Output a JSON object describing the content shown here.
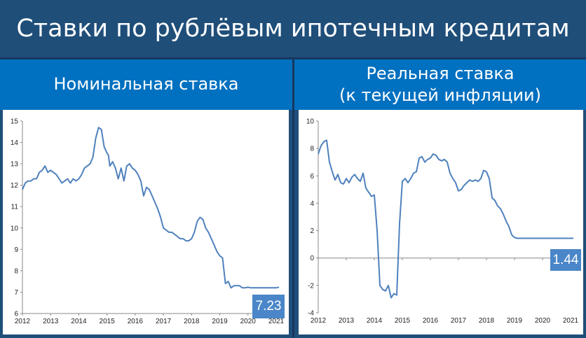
{
  "page": {
    "title": "Ставки по рублёвым ипотечным кредитам",
    "left_header": "Номинальная ставка",
    "right_header_line1": "Реальная ставка",
    "right_header_line2": "(к текущей инфляции)",
    "left_badge": "7.23",
    "right_badge": "1.44"
  },
  "colors": {
    "line": "#4f81bd",
    "header": "#1f4e79",
    "panel": "#0070c0",
    "badge": "#4a86c8"
  },
  "chart_data": [
    {
      "type": "line",
      "title": "Номинальная ставка",
      "xlim": [
        2012,
        2021.2
      ],
      "ylim": [
        6,
        15
      ],
      "yticks": [
        6,
        7,
        8,
        9,
        10,
        11,
        12,
        13,
        14,
        15
      ],
      "xticks": [
        2012,
        2013,
        2014,
        2015,
        2016,
        2017,
        2018,
        2019,
        2020,
        2021
      ],
      "grid": false,
      "series": [
        {
          "x": [
            2012,
            2012.1,
            2012.2,
            2012.3,
            2012.4,
            2012.5,
            2012.6,
            2012.7,
            2012.8,
            2012.9,
            2013,
            2013.1,
            2013.2,
            2013.3,
            2013.4,
            2013.5,
            2013.6,
            2013.7,
            2013.8,
            2013.9,
            2014,
            2014.1,
            2014.2,
            2014.3,
            2014.4,
            2014.5,
            2014.6,
            2014.7,
            2014.8,
            2014.9,
            2015,
            2015.05,
            2015.1,
            2015.2,
            2015.3,
            2015.4,
            2015.5,
            2015.6,
            2015.7,
            2015.8,
            2015.9,
            2016,
            2016.1,
            2016.2,
            2016.3,
            2016.4,
            2016.5,
            2016.6,
            2016.7,
            2016.8,
            2016.9,
            2017,
            2017.1,
            2017.2,
            2017.3,
            2017.4,
            2017.5,
            2017.6,
            2017.7,
            2017.8,
            2017.9,
            2018,
            2018.1,
            2018.2,
            2018.3,
            2018.4,
            2018.5,
            2018.6,
            2018.7,
            2018.8,
            2018.9,
            2019,
            2019.1,
            2019.2,
            2019.3,
            2019.4,
            2019.5,
            2019.6,
            2019.7,
            2019.8,
            2019.9,
            2020,
            2020.1,
            2020.2,
            2020.3,
            2020.4,
            2020.5,
            2020.6,
            2020.7,
            2020.8,
            2020.9,
            2021,
            2021.1
          ],
          "y": [
            11.8,
            12.1,
            12.2,
            12.2,
            12.3,
            12.3,
            12.6,
            12.7,
            12.9,
            12.6,
            12.7,
            12.6,
            12.5,
            12.3,
            12.1,
            12.2,
            12.3,
            12.1,
            12.3,
            12.2,
            12.3,
            12.5,
            12.8,
            12.9,
            13.0,
            13.3,
            14.2,
            14.7,
            14.6,
            13.8,
            13.5,
            13.4,
            12.9,
            13.1,
            12.8,
            12.3,
            12.8,
            12.2,
            12.9,
            13.0,
            12.8,
            12.7,
            12.5,
            12.2,
            11.5,
            11.9,
            11.8,
            11.5,
            11.2,
            10.9,
            10.5,
            10.0,
            9.9,
            9.8,
            9.8,
            9.7,
            9.6,
            9.5,
            9.5,
            9.4,
            9.4,
            9.5,
            9.8,
            10.3,
            10.5,
            10.4,
            10.0,
            9.8,
            9.5,
            9.2,
            8.9,
            8.7,
            8.6,
            7.4,
            7.5,
            7.2,
            7.3,
            7.3,
            7.3,
            7.2,
            7.2,
            7.23,
            7.2,
            7.2,
            7.2,
            7.2,
            7.2,
            7.2,
            7.2,
            7.2,
            7.2,
            7.2,
            7.23
          ]
        }
      ]
    },
    {
      "type": "line",
      "title": "Реальная ставка (к текущей инфляции)",
      "xlim": [
        2012,
        2021.2
      ],
      "ylim": [
        -4,
        10
      ],
      "yticks": [
        -4,
        -2,
        0,
        2,
        4,
        6,
        8,
        10
      ],
      "xticks": [
        2012,
        2013,
        2014,
        2015,
        2016,
        2017,
        2018,
        2019,
        2020,
        2021
      ],
      "grid": false,
      "series": [
        {
          "x": [
            2012,
            2012.1,
            2012.2,
            2012.3,
            2012.4,
            2012.5,
            2012.6,
            2012.7,
            2012.8,
            2012.9,
            2013,
            2013.1,
            2013.2,
            2013.3,
            2013.4,
            2013.5,
            2013.6,
            2013.7,
            2013.8,
            2013.9,
            2014,
            2014.1,
            2014.2,
            2014.3,
            2014.4,
            2014.5,
            2014.6,
            2014.7,
            2014.8,
            2014.9,
            2015,
            2015.1,
            2015.2,
            2015.3,
            2015.4,
            2015.5,
            2015.6,
            2015.7,
            2015.8,
            2015.9,
            2016,
            2016.1,
            2016.2,
            2016.3,
            2016.4,
            2016.5,
            2016.6,
            2016.7,
            2016.8,
            2016.9,
            2017,
            2017.1,
            2017.2,
            2017.3,
            2017.4,
            2017.5,
            2017.6,
            2017.7,
            2017.8,
            2017.9,
            2018,
            2018.1,
            2018.2,
            2018.3,
            2018.4,
            2018.5,
            2018.6,
            2018.7,
            2018.8,
            2018.9,
            2019,
            2019.1,
            2019.2,
            2019.3,
            2019.4,
            2019.5,
            2019.6,
            2019.7,
            2019.8,
            2019.9,
            2020,
            2020.1,
            2020.2,
            2020.3,
            2020.4,
            2020.5,
            2020.6,
            2020.7,
            2020.8,
            2020.9,
            2021,
            2021.1
          ],
          "y": [
            7.6,
            8.2,
            8.5,
            8.6,
            7.0,
            6.3,
            5.7,
            6.1,
            5.5,
            5.4,
            5.8,
            5.5,
            5.9,
            6.1,
            5.8,
            5.6,
            6.2,
            5.1,
            4.8,
            4.5,
            4.6,
            2.0,
            -2.0,
            -2.3,
            -2.4,
            -2.0,
            -2.9,
            -2.6,
            -2.7,
            2.5,
            5.6,
            5.8,
            5.5,
            5.8,
            6.2,
            6.3,
            7.3,
            7.4,
            7.0,
            7.2,
            7.3,
            7.6,
            7.5,
            7.2,
            7.1,
            7.2,
            7.0,
            6.2,
            5.8,
            5.5,
            4.9,
            5.0,
            5.3,
            5.5,
            5.7,
            5.6,
            5.7,
            5.6,
            5.8,
            6.4,
            6.3,
            5.8,
            4.4,
            4.2,
            3.8,
            3.6,
            3.2,
            2.7,
            2.3,
            1.7,
            1.5,
            1.44,
            1.44,
            1.44,
            1.44,
            1.44,
            1.44,
            1.44,
            1.44,
            1.44,
            1.44,
            1.44,
            1.44,
            1.44,
            1.44,
            1.44,
            1.44,
            1.44,
            1.44,
            1.44,
            1.44,
            1.44
          ]
        }
      ]
    }
  ]
}
